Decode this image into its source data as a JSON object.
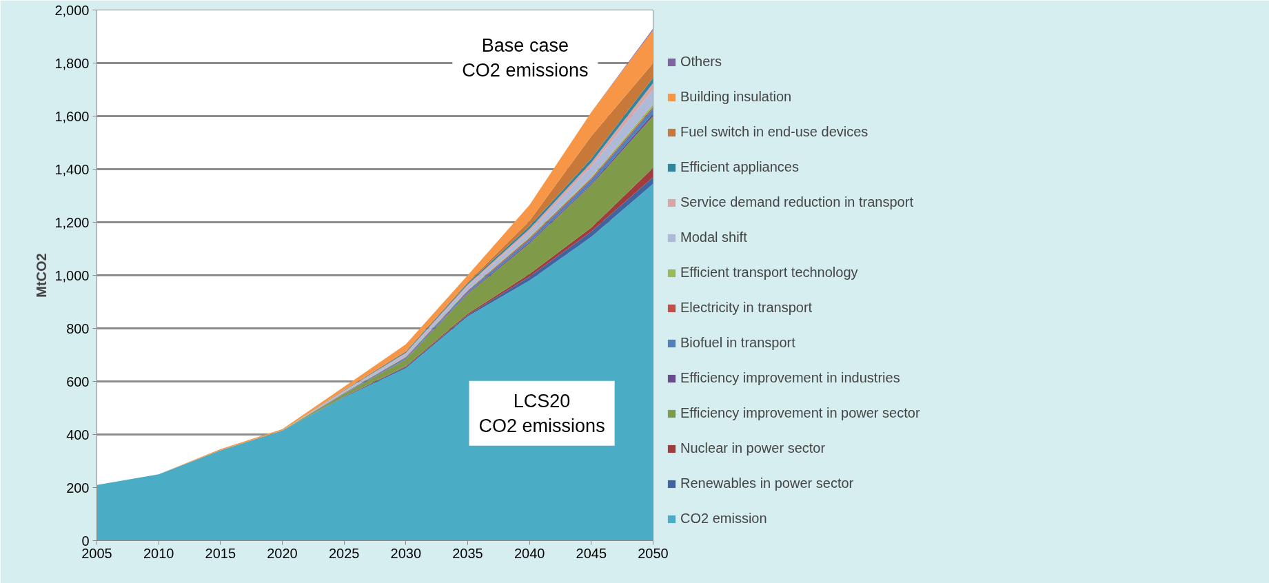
{
  "chart_data": {
    "type": "area",
    "stacked": true,
    "ylabel": "MtCO2",
    "x": [
      2005,
      2010,
      2015,
      2020,
      2025,
      2030,
      2035,
      2040,
      2045,
      2050
    ],
    "xlim": [
      2005,
      2050
    ],
    "xticks": [
      2005,
      2010,
      2015,
      2020,
      2025,
      2030,
      2035,
      2040,
      2045,
      2050
    ],
    "ylim": [
      0,
      2000
    ],
    "yticks": [
      0,
      200,
      400,
      600,
      800,
      {
        "value": 1000,
        "label": "1,000"
      },
      {
        "value": 1200,
        "label": "1,200"
      },
      {
        "value": 1400,
        "label": "1,400"
      },
      {
        "value": 1600,
        "label": "1,600"
      },
      {
        "value": 1800,
        "label": "1,800"
      },
      {
        "value": 2000,
        "label": "2,000"
      }
    ],
    "grid": "y",
    "legend": "right",
    "series": [
      {
        "name": "CO2 emission",
        "color": "#4bacc6",
        "values": [
          210,
          250,
          340,
          415,
          540,
          650,
          845,
          980,
          1145,
          1345
        ]
      },
      {
        "name": "Renewables in power sector",
        "color": "#3f64a0",
        "values": [
          0,
          0,
          0,
          0,
          2,
          5,
          5,
          15,
          20,
          25
        ]
      },
      {
        "name": "Nuclear in power sector",
        "color": "#a03c3c",
        "values": [
          0,
          0,
          0,
          0,
          1,
          3,
          5,
          10,
          15,
          35
        ]
      },
      {
        "name": "Efficiency improvement in power sector",
        "color": "#7f9a48",
        "values": [
          0,
          0,
          0,
          0,
          10,
          25,
          75,
          115,
          160,
          195
        ]
      },
      {
        "name": "Efficiency improvement in industries",
        "color": "#6a4c8c",
        "values": [
          0,
          0,
          0,
          0,
          1,
          2,
          3,
          5,
          5,
          10
        ]
      },
      {
        "name": "Biofuel in transport",
        "color": "#4f81bd",
        "values": [
          0,
          0,
          0,
          0,
          2,
          5,
          7,
          10,
          15,
          20
        ]
      },
      {
        "name": "Electricity in transport",
        "color": "#c0504d",
        "values": [
          0,
          0,
          0,
          0,
          1,
          2,
          3,
          5,
          5,
          5
        ]
      },
      {
        "name": "Efficient transport technology",
        "color": "#9bbb59",
        "values": [
          0,
          0,
          0,
          0,
          1,
          2,
          2,
          5,
          5,
          10
        ]
      },
      {
        "name": "Modal shift",
        "color": "#aebad8",
        "values": [
          0,
          0,
          0,
          0,
          5,
          10,
          15,
          20,
          40,
          55
        ]
      },
      {
        "name": "Service demand reduction in transport",
        "color": "#d9a5a5",
        "values": [
          0,
          0,
          0,
          0,
          2,
          4,
          5,
          10,
          15,
          25
        ]
      },
      {
        "name": "Efficient appliances",
        "color": "#31859c",
        "values": [
          0,
          0,
          0,
          0,
          2,
          4,
          5,
          10,
          15,
          20
        ]
      },
      {
        "name": "Fuel switch in end-use devices",
        "color": "#c8793a",
        "values": [
          0,
          0,
          0,
          0,
          1,
          3,
          5,
          20,
          85,
          55
        ]
      },
      {
        "name": "Building insulation",
        "color": "#f79646",
        "values": [
          0,
          0,
          5,
          5,
          12,
          25,
          25,
          60,
          90,
          125
        ]
      },
      {
        "name": "Others",
        "color": "#8064a2",
        "values": [
          0,
          0,
          0,
          0,
          0,
          0,
          0,
          0,
          0,
          5
        ]
      }
    ],
    "annotations": [
      "Base case\nCO2 emissions",
      "LCS20\nCO2 emissions"
    ]
  }
}
